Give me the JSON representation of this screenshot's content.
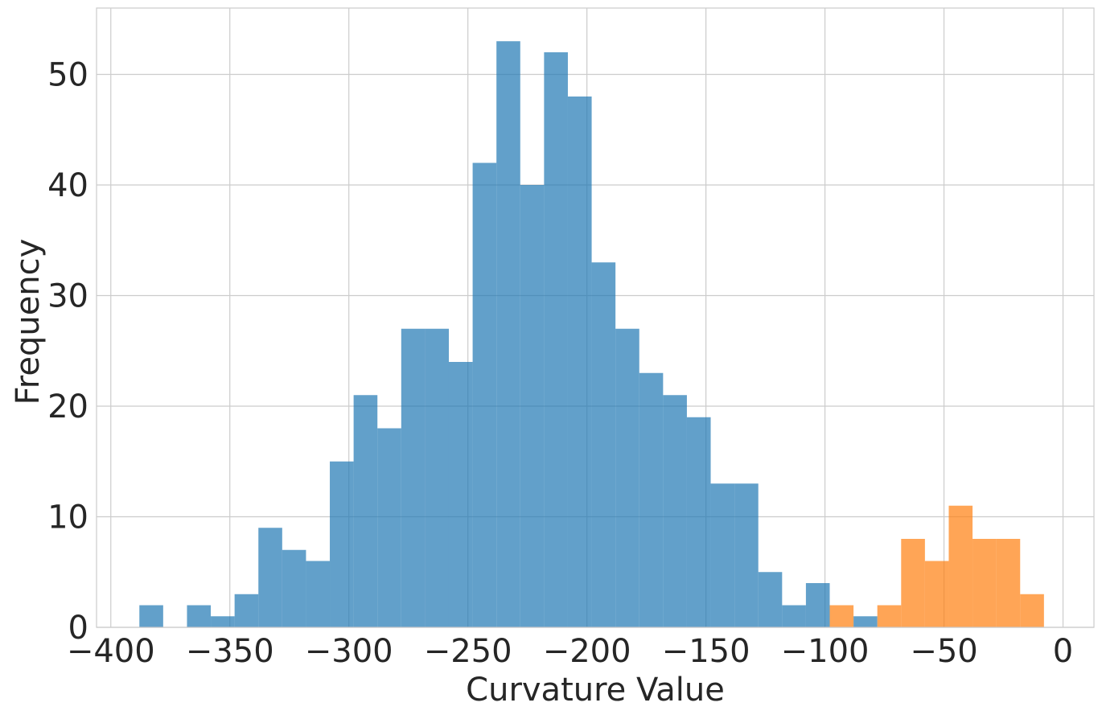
{
  "chart_data": {
    "type": "bar",
    "subtype": "histogram",
    "title": "",
    "xlabel": "Curvature Value",
    "ylabel": "Frequency",
    "xlim": [
      -406,
      13
    ],
    "ylim": [
      0,
      56
    ],
    "xticks": [
      -400,
      -350,
      -300,
      -250,
      -200,
      -150,
      -100,
      -50,
      0
    ],
    "xtick_labels": [
      "−400",
      "−350",
      "−300",
      "−250",
      "−200",
      "−150",
      "−100",
      "−50",
      "0"
    ],
    "yticks": [
      0,
      10,
      20,
      30,
      40,
      50
    ],
    "ytick_labels": [
      "0",
      "10",
      "20",
      "30",
      "40",
      "50"
    ],
    "grid": true,
    "legend": "none",
    "series": [
      {
        "color": "#1f77b4",
        "bins": [
          {
            "x0": -388,
            "x1": -378,
            "count": 2
          },
          {
            "x0": -368,
            "x1": -358,
            "count": 2
          },
          {
            "x0": -358,
            "x1": -348,
            "count": 1
          },
          {
            "x0": -348,
            "x1": -338,
            "count": 3
          },
          {
            "x0": -338,
            "x1": -328,
            "count": 9
          },
          {
            "x0": -328,
            "x1": -318,
            "count": 7
          },
          {
            "x0": -318,
            "x1": -308,
            "count": 6
          },
          {
            "x0": -308,
            "x1": -298,
            "count": 15
          },
          {
            "x0": -298,
            "x1": -288,
            "count": 21
          },
          {
            "x0": -288,
            "x1": -278,
            "count": 18
          },
          {
            "x0": -278,
            "x1": -268,
            "count": 27
          },
          {
            "x0": -268,
            "x1": -258,
            "count": 27
          },
          {
            "x0": -258,
            "x1": -248,
            "count": 24
          },
          {
            "x0": -248,
            "x1": -238,
            "count": 42
          },
          {
            "x0": -238,
            "x1": -228,
            "count": 53
          },
          {
            "x0": -228,
            "x1": -218,
            "count": 40
          },
          {
            "x0": -218,
            "x1": -208,
            "count": 52
          },
          {
            "x0": -208,
            "x1": -198,
            "count": 48
          },
          {
            "x0": -198,
            "x1": -188,
            "count": 33
          },
          {
            "x0": -188,
            "x1": -178,
            "count": 27
          },
          {
            "x0": -178,
            "x1": -168,
            "count": 23
          },
          {
            "x0": -168,
            "x1": -158,
            "count": 21
          },
          {
            "x0": -158,
            "x1": -148,
            "count": 19
          },
          {
            "x0": -148,
            "x1": -138,
            "count": 13
          },
          {
            "x0": -138,
            "x1": -128,
            "count": 13
          },
          {
            "x0": -128,
            "x1": -118,
            "count": 5
          },
          {
            "x0": -118,
            "x1": -108,
            "count": 2
          },
          {
            "x0": -108,
            "x1": -98,
            "count": 4
          },
          {
            "x0": -88,
            "x1": -78,
            "count": 1
          }
        ]
      },
      {
        "color": "#ff7f0e",
        "bins": [
          {
            "x0": -98,
            "x1": -88,
            "count": 2
          },
          {
            "x0": -78,
            "x1": -68,
            "count": 2
          },
          {
            "x0": -68,
            "x1": -58,
            "count": 8
          },
          {
            "x0": -58,
            "x1": -48,
            "count": 6
          },
          {
            "x0": -48,
            "x1": -38,
            "count": 11
          },
          {
            "x0": -38,
            "x1": -28,
            "count": 8
          },
          {
            "x0": -28,
            "x1": -18,
            "count": 8
          },
          {
            "x0": -18,
            "x1": -8,
            "count": 3
          }
        ]
      }
    ]
  }
}
